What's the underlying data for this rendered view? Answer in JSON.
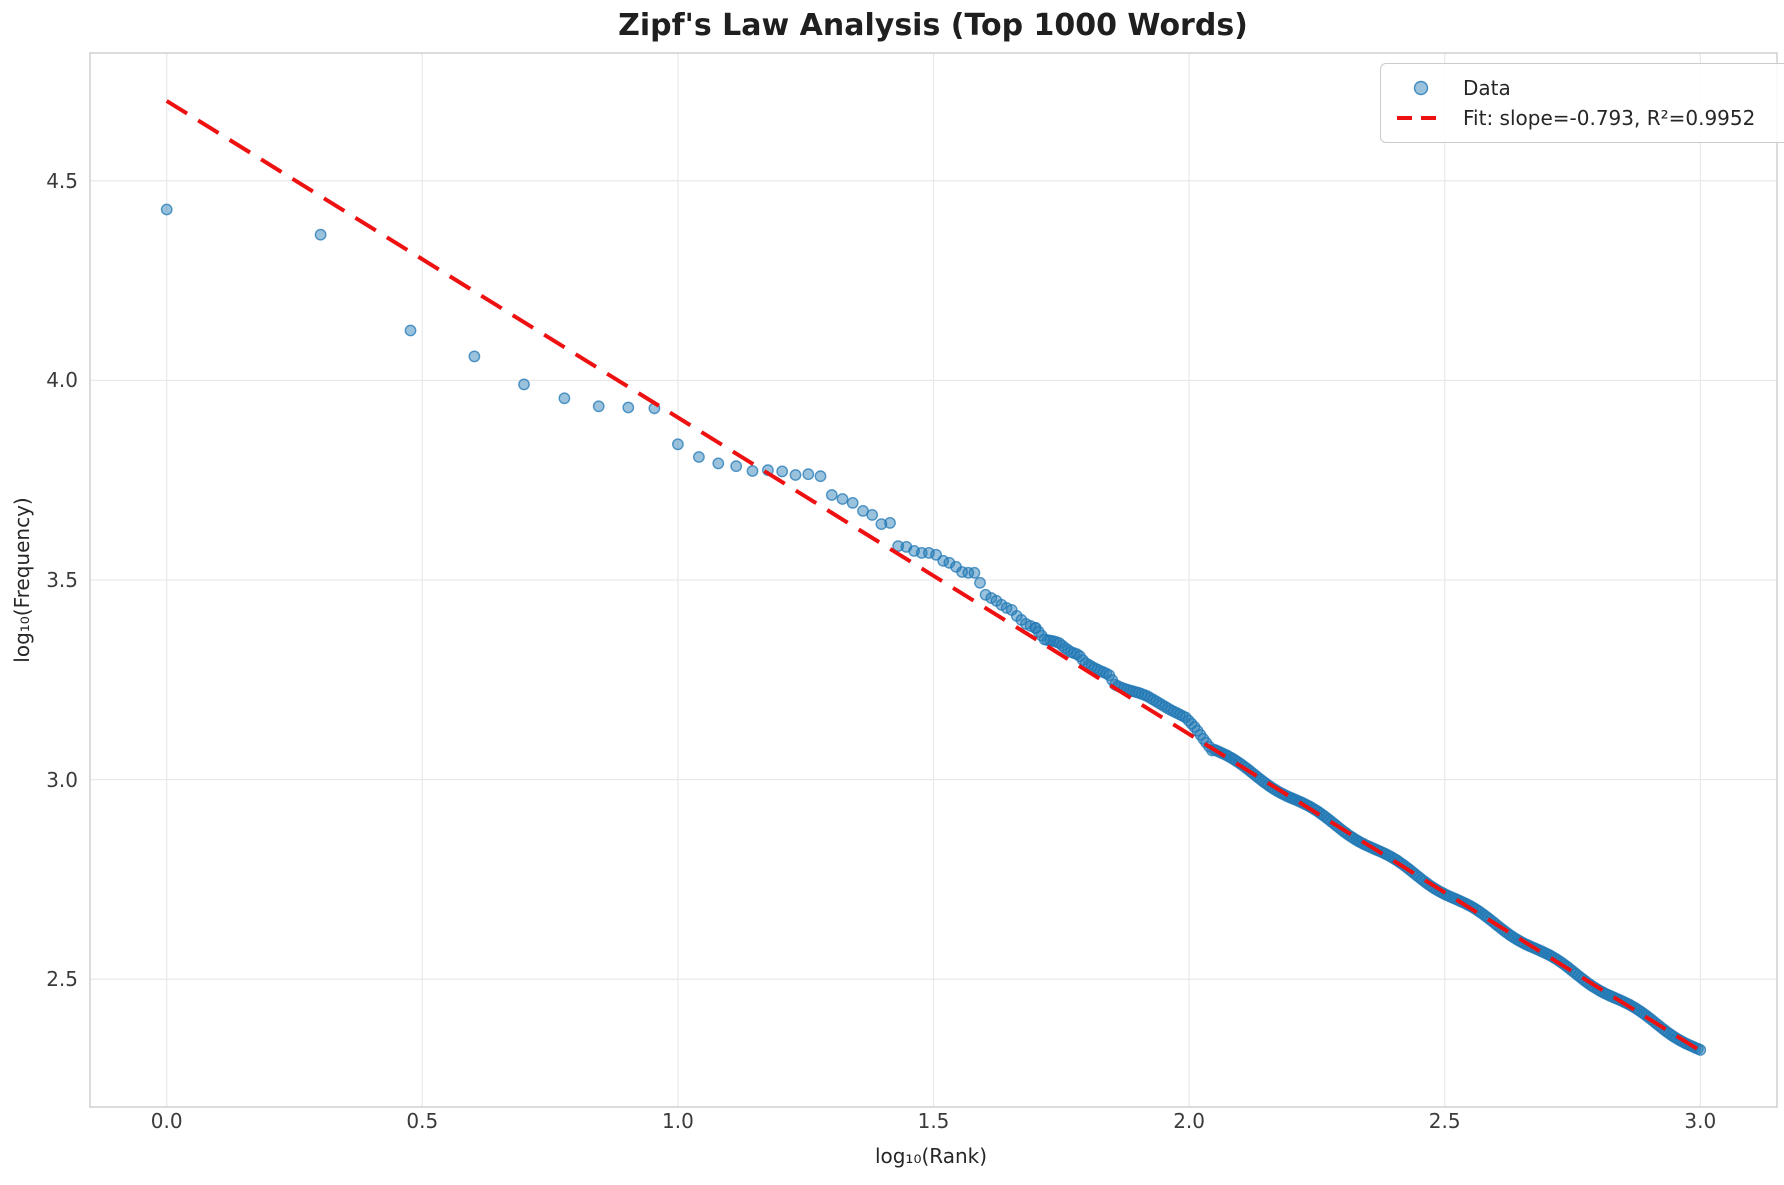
{
  "figure": {
    "background": "#ffffff"
  },
  "chart_data": {
    "type": "scatter",
    "title": "Zipf's Law Analysis (Top 1000 Words)",
    "xlabel": "log₁₀(Rank)",
    "ylabel": "log₁₀(Frequency)",
    "xlim": [
      -0.15,
      3.15
    ],
    "ylim": [
      2.18,
      4.82
    ],
    "grid": true,
    "grid_color": "#e9e9e9",
    "spine_color": "#c9c9c9",
    "x_tick_values": [
      0.0,
      0.5,
      1.0,
      1.5,
      2.0,
      2.5,
      3.0
    ],
    "x_tick_labels": [
      "0.0",
      "0.5",
      "1.0",
      "1.5",
      "2.0",
      "2.5",
      "3.0"
    ],
    "y_tick_values": [
      2.5,
      3.0,
      3.5,
      4.0,
      4.5
    ],
    "y_tick_labels": [
      "2.5",
      "3.0",
      "3.5",
      "4.0",
      "4.5"
    ],
    "legend": {
      "position": "upper right",
      "items": [
        {
          "label": "Data",
          "marker": "circle"
        },
        {
          "label": "Fit: slope=-0.793, R²=0.9952",
          "marker": "dashed-line"
        }
      ]
    },
    "fit_line": {
      "slope": -0.793,
      "intercept": 4.7,
      "r_squared": 0.9952,
      "u_start": 0.0,
      "u_end": 3.0,
      "color": "#ee1111",
      "dash": [
        24,
        13
      ],
      "width": 4
    },
    "points_color": "#1f77b4",
    "points_alpha": 0.45,
    "points_edge_alpha": 0.75,
    "marker_radius": 5.2,
    "points": [
      [
        0.0,
        4.428
      ],
      [
        0.301,
        4.365
      ],
      [
        0.477,
        4.125
      ],
      [
        0.602,
        4.06
      ],
      [
        0.699,
        3.99
      ],
      [
        0.778,
        3.955
      ],
      [
        0.845,
        3.935
      ],
      [
        0.903,
        3.932
      ],
      [
        0.954,
        3.93
      ],
      [
        1.0,
        3.84
      ],
      [
        1.041,
        3.808
      ],
      [
        1.079,
        3.792
      ],
      [
        1.114,
        3.785
      ],
      [
        1.146,
        3.773
      ],
      [
        1.176,
        3.775
      ],
      [
        1.204,
        3.772
      ],
      [
        1.23,
        3.763
      ],
      [
        1.255,
        3.765
      ],
      [
        1.279,
        3.76
      ],
      [
        1.301,
        3.713
      ],
      [
        1.322,
        3.703
      ],
      [
        1.342,
        3.693
      ],
      [
        1.362,
        3.673
      ],
      [
        1.38,
        3.663
      ],
      [
        1.398,
        3.64
      ],
      [
        1.415,
        3.643
      ],
      [
        1.431,
        3.585
      ],
      [
        1.447,
        3.583
      ],
      [
        1.462,
        3.573
      ],
      [
        1.477,
        3.568
      ],
      [
        1.491,
        3.568
      ],
      [
        1.505,
        3.563
      ],
      [
        1.519,
        3.548
      ],
      [
        1.531,
        3.543
      ],
      [
        1.544,
        3.533
      ],
      [
        1.556,
        3.52
      ],
      [
        1.568,
        3.518
      ],
      [
        1.58,
        3.518
      ],
      [
        1.591,
        3.493
      ],
      [
        1.602,
        3.463
      ],
      [
        1.613,
        3.455
      ],
      [
        1.623,
        3.448
      ],
      [
        1.633,
        3.438
      ],
      [
        1.643,
        3.43
      ],
      [
        1.653,
        3.425
      ],
      [
        1.663,
        3.41
      ],
      [
        1.672,
        3.4
      ],
      [
        1.681,
        3.39
      ],
      [
        1.69,
        3.385
      ],
      [
        1.699,
        3.38
      ]
    ],
    "band_anchors": [
      [
        1.7,
        3.38
      ],
      [
        1.718,
        3.35
      ],
      [
        1.732,
        3.348
      ],
      [
        1.745,
        3.343
      ],
      [
        1.757,
        3.33
      ],
      [
        1.771,
        3.318
      ],
      [
        1.784,
        3.313
      ],
      [
        1.796,
        3.293
      ],
      [
        1.814,
        3.28
      ],
      [
        1.825,
        3.273
      ],
      [
        1.843,
        3.263
      ],
      [
        1.855,
        3.238
      ],
      [
        1.868,
        3.23
      ],
      [
        1.885,
        3.223
      ],
      [
        1.9,
        3.218
      ],
      [
        1.917,
        3.21
      ],
      [
        1.933,
        3.198
      ],
      [
        1.95,
        3.185
      ],
      [
        1.966,
        3.173
      ],
      [
        1.982,
        3.163
      ],
      [
        1.994,
        3.155
      ],
      [
        2.012,
        3.13
      ],
      [
        2.026,
        3.105
      ],
      [
        2.045,
        3.073
      ]
    ],
    "band_n_points": 61,
    "dense_tail": {
      "u_start": 2.049,
      "u_end": 3.0,
      "n_points": 200,
      "wiggle_amplitude": 0.006,
      "wiggle_frequency": 40,
      "note": "ranks ~112-1000 overlap into a continuous band riding the fit line, ending at v≈2.30"
    }
  }
}
